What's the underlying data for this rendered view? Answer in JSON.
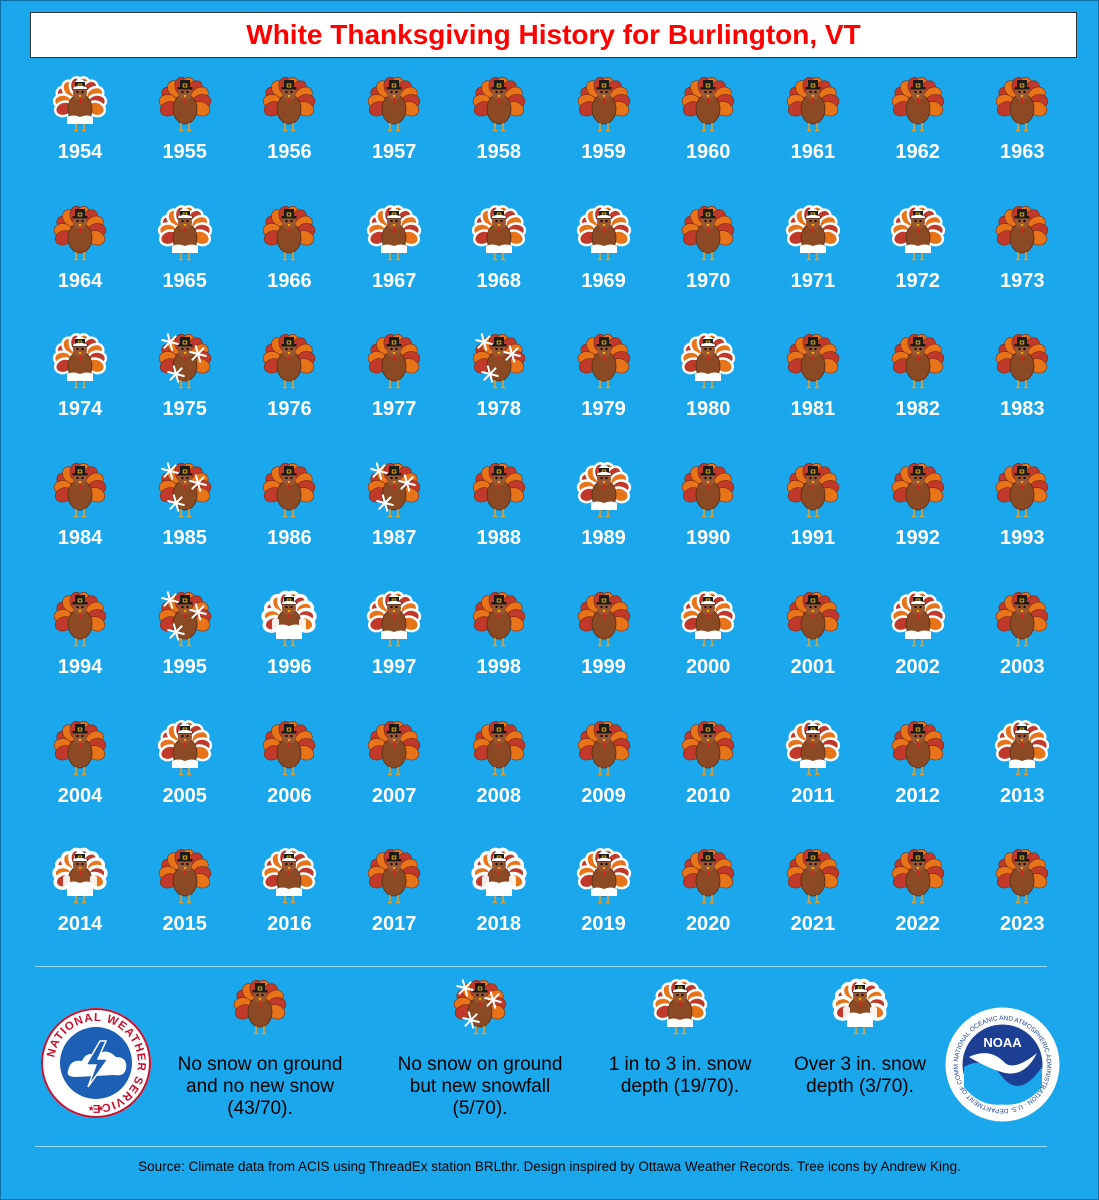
{
  "title": "White Thanksgiving History for Burlington, VT",
  "colors": {
    "background": "#1aa7ec",
    "title_text": "#ff0000",
    "feather_red": "#c0392b",
    "feather_orange": "#e8741a",
    "body_brown": "#8b4a24",
    "snow_white": "#ffffff"
  },
  "chart_data": {
    "type": "table",
    "category_meaning": {
      "0": "No snow on ground and no new snow",
      "1": "No snow on ground but new snowfall",
      "2": "1 in to 3 in. snow depth",
      "3": "Over 3 in. snow depth"
    },
    "years": [
      1954,
      1955,
      1956,
      1957,
      1958,
      1959,
      1960,
      1961,
      1962,
      1963,
      1964,
      1965,
      1966,
      1967,
      1968,
      1969,
      1970,
      1971,
      1972,
      1973,
      1974,
      1975,
      1976,
      1977,
      1978,
      1979,
      1980,
      1981,
      1982,
      1983,
      1984,
      1985,
      1986,
      1987,
      1988,
      1989,
      1990,
      1991,
      1992,
      1993,
      1994,
      1995,
      1996,
      1997,
      1998,
      1999,
      2000,
      2001,
      2002,
      2003,
      2004,
      2005,
      2006,
      2007,
      2008,
      2009,
      2010,
      2011,
      2012,
      2013,
      2014,
      2015,
      2016,
      2017,
      2018,
      2019,
      2020,
      2021,
      2022,
      2023
    ],
    "categories": [
      2,
      0,
      0,
      0,
      0,
      0,
      0,
      0,
      0,
      0,
      0,
      2,
      0,
      2,
      2,
      2,
      0,
      2,
      2,
      0,
      2,
      1,
      0,
      0,
      1,
      0,
      2,
      0,
      0,
      0,
      0,
      1,
      0,
      1,
      0,
      2,
      0,
      0,
      0,
      0,
      0,
      1,
      3,
      2,
      0,
      0,
      2,
      0,
      2,
      0,
      0,
      2,
      0,
      0,
      0,
      0,
      0,
      2,
      0,
      2,
      3,
      0,
      2,
      0,
      3,
      2,
      0,
      0,
      0,
      0
    ]
  },
  "legend": [
    {
      "category": 0,
      "text": "No snow on ground and no new snow (43/70)."
    },
    {
      "category": 1,
      "text": "No snow on ground but new snowfall (5/70)."
    },
    {
      "category": 2,
      "text": "1 in to 3 in. snow depth (19/70)."
    },
    {
      "category": 3,
      "text": "Over 3 in. snow depth (3/70)."
    }
  ],
  "logos": {
    "nws_text": "NATIONAL WEATHER SERVICE",
    "noaa_text": "NOAA",
    "noaa_ring_text": "NATIONAL OCEANIC AND ATMOSPHERIC ADMINISTRATION · U.S. DEPARTMENT OF COMMERCE"
  },
  "source": "Source: Climate data from ACIS using ThreadEx station BRLthr. Design inspired by Ottawa Weather Records. Tree icons by Andrew King."
}
